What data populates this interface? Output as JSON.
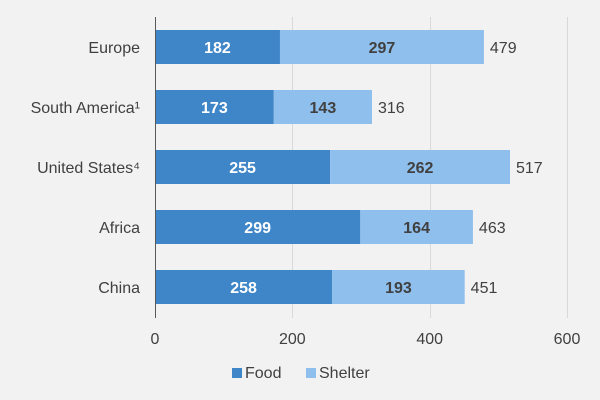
{
  "chart_data": {
    "type": "bar",
    "orientation": "horizontal",
    "stacked": true,
    "categories": [
      "Europe",
      "South America¹",
      "United States⁴",
      "Africa",
      "China"
    ],
    "series": [
      {
        "name": "Food",
        "color": "#3f86c8",
        "values": [
          182,
          173,
          255,
          299,
          258
        ]
      },
      {
        "name": "Shelter",
        "color": "#8fbfec",
        "values": [
          297,
          143,
          262,
          164,
          193
        ]
      }
    ],
    "totals": [
      479,
      316,
      517,
      463,
      451
    ],
    "x_ticks": [
      0,
      200,
      400,
      600
    ],
    "xlim": [
      0,
      600
    ],
    "grid": true,
    "legend": "bottom",
    "title": "",
    "xlabel": "",
    "ylabel": ""
  }
}
